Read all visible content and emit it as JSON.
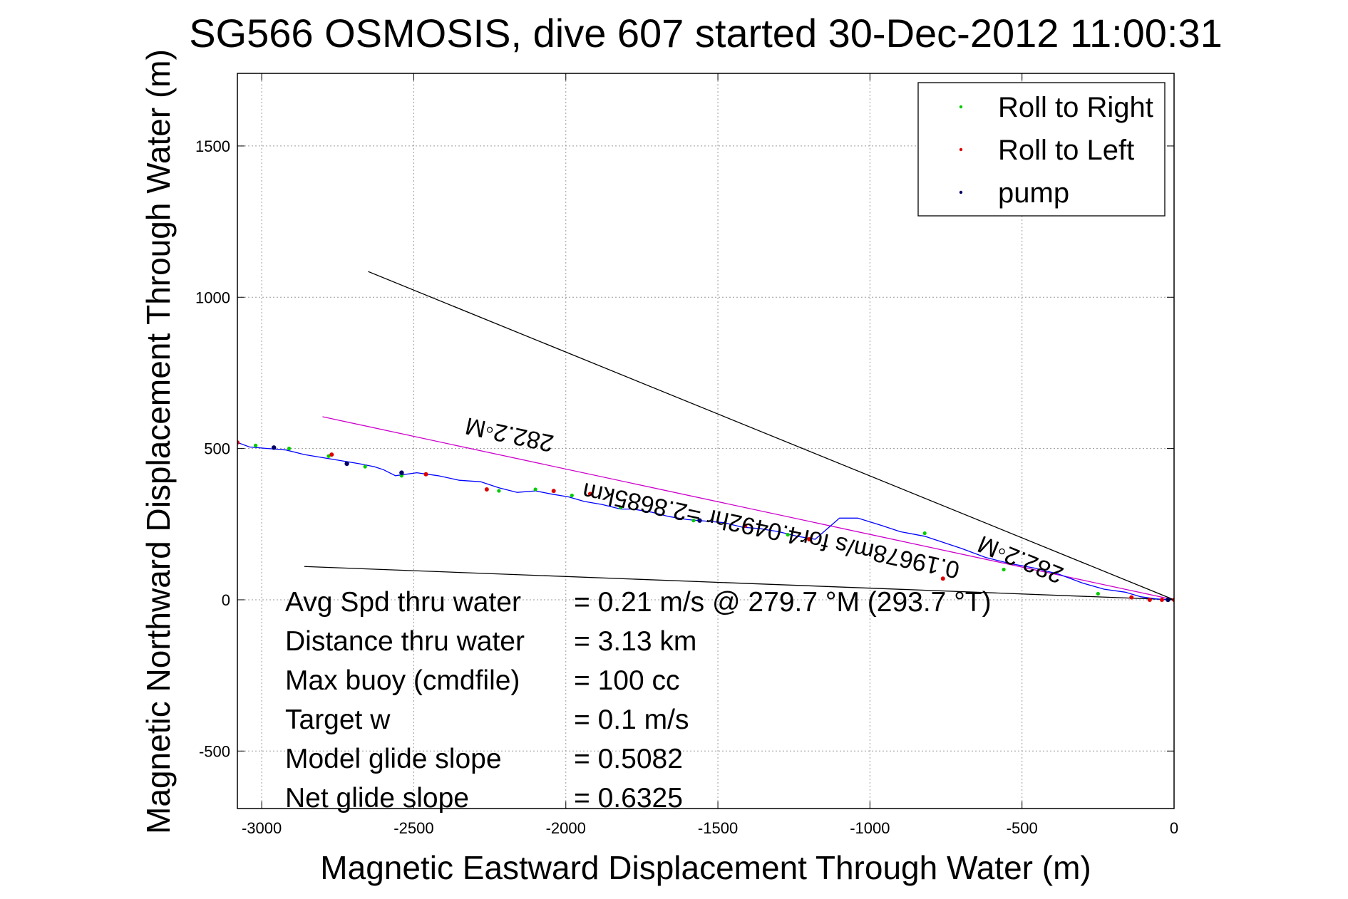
{
  "chart_data": {
    "type": "line",
    "title": "SG566 OSMOSIS, dive 607 started 30-Dec-2012 11:00:31",
    "xlabel": "Magnetic Eastward Displacement Through Water (m)",
    "ylabel": "Magnetic Northward Displacement Through Water (m)",
    "xlim": [
      -3080,
      0
    ],
    "ylim": [
      -690,
      1740
    ],
    "xticks": [
      -3000,
      -2500,
      -2000,
      -1500,
      -1000,
      -500,
      0
    ],
    "yticks": [
      -500,
      0,
      500,
      1000,
      1500
    ],
    "grid": true,
    "legend": {
      "placement": "top-right",
      "entries": [
        {
          "label": "Roll to Right",
          "color": "#00cc00"
        },
        {
          "label": "Roll to Left",
          "color": "#dd0000"
        },
        {
          "label": "pump",
          "color": "#000066"
        }
      ]
    },
    "track": {
      "color": "#0000ff",
      "x": [
        0,
        -20,
        -60,
        -110,
        -160,
        -230,
        -300,
        -380,
        -460,
        -540,
        -620,
        -700,
        -760,
        -820,
        -900,
        -960,
        -1040,
        -1100,
        -1180,
        -1240,
        -1300,
        -1360,
        -1420,
        -1480,
        -1540,
        -1600,
        -1660,
        -1720,
        -1780,
        -1820,
        -1880,
        -1940,
        -1990,
        -2050,
        -2100,
        -2160,
        -2220,
        -2280,
        -2350,
        -2420,
        -2490,
        -2560,
        -2600,
        -2630,
        -2680,
        -2740,
        -2800,
        -2860,
        -2920,
        -2980,
        -3040,
        -3080
      ],
      "y": [
        0,
        0,
        3,
        10,
        25,
        35,
        55,
        85,
        105,
        120,
        140,
        170,
        190,
        210,
        225,
        245,
        270,
        270,
        200,
        210,
        225,
        235,
        240,
        255,
        260,
        265,
        275,
        290,
        300,
        300,
        315,
        325,
        340,
        350,
        360,
        355,
        370,
        390,
        395,
        410,
        420,
        410,
        430,
        440,
        450,
        460,
        470,
        480,
        495,
        500,
        505,
        520
      ]
    },
    "roll_right_points": {
      "color": "#00cc00",
      "x": [
        -250,
        -560,
        -820,
        -1270,
        -1580,
        -1820,
        -1980,
        -2100,
        -2220,
        -2540,
        -2660,
        -2780,
        -2910,
        -3020
      ],
      "y": [
        20,
        100,
        220,
        215,
        262,
        305,
        345,
        365,
        360,
        410,
        440,
        475,
        500,
        510
      ]
    },
    "roll_left_points": {
      "color": "#dd0000",
      "x": [
        0,
        -40,
        -80,
        -140,
        -760,
        -1200,
        -1410,
        -1920,
        -2040,
        -2260,
        -2460,
        -2770,
        -3080
      ],
      "y": [
        0,
        0,
        0,
        8,
        70,
        200,
        245,
        350,
        360,
        365,
        415,
        480,
        520
      ]
    },
    "pump_points": {
      "color": "#000066",
      "x": [
        -20,
        -1560,
        -2540,
        -2720,
        -2960
      ],
      "y": [
        0,
        262,
        420,
        450,
        503
      ]
    },
    "lines": [
      {
        "name": "282.2°M",
        "color": "#cc00cc",
        "x": [
          0,
          -2800
        ],
        "y": [
          0,
          605
        ]
      },
      {
        "color": "#000000",
        "x": [
          0,
          -2650
        ],
        "y": [
          0,
          1085
        ]
      },
      {
        "color": "#000000",
        "x": [
          0,
          -2860
        ],
        "y": [
          0,
          110
        ]
      }
    ],
    "annotations": [
      {
        "text": "282.2◦M",
        "x": -2180,
        "y": 572,
        "rotation": 192
      },
      {
        "text": "0.19678m/s for4.0492hr =2.8685km",
        "x": -1320,
        "y": 255,
        "rotation": 192
      },
      {
        "text": "282.2◦M",
        "x": -495,
        "y": 158,
        "rotation": 202
      }
    ],
    "stats": [
      {
        "label": "Avg Spd thru water",
        "value": "=  0.21 m/s @ 279.7 °M (293.7 °T)"
      },
      {
        "label": "Distance thru water",
        "value": "=  3.13 km"
      },
      {
        "label": "Max buoy (cmdfile)",
        "value": "= 100 cc"
      },
      {
        "label": "Target w",
        "value": "= 0.1 m/s"
      },
      {
        "label": "Model glide slope",
        "value": "= 0.5082"
      },
      {
        "label": "Net glide slope",
        "value": "= 0.6325"
      }
    ]
  }
}
